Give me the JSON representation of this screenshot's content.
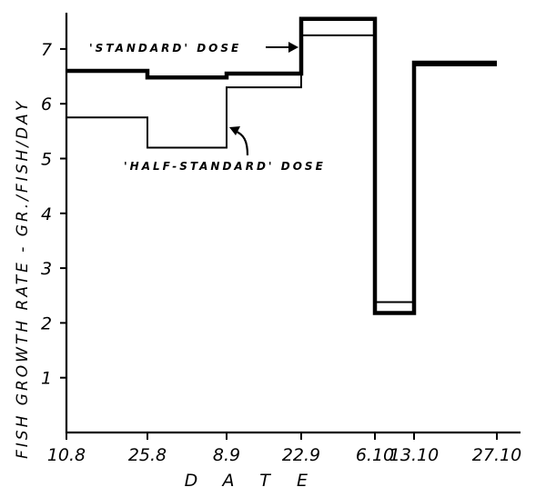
{
  "chart_data": {
    "type": "line",
    "subtype": "step",
    "title": "",
    "xlabel": "D A T E",
    "ylabel": "FISH GROWTH RATE - GR./FISH/DAY",
    "x_ticks": [
      "10.8",
      "25.8",
      "8.9",
      "22.9",
      "6.10",
      "13.10",
      "27.10"
    ],
    "y_ticks": [
      "1",
      "2",
      "3",
      "4",
      "5",
      "6",
      "7"
    ],
    "ylim": [
      0,
      7.7
    ],
    "grid": false,
    "legend": "annotations",
    "series": [
      {
        "name": "'STANDARD' DOSE",
        "style": "thick",
        "steps": [
          {
            "from": "10.8",
            "to": "25.8",
            "value": 6.6
          },
          {
            "from": "25.8",
            "to": "8.9",
            "value": 6.48
          },
          {
            "from": "8.9",
            "to": "22.9",
            "value": 6.55
          },
          {
            "from": "22.9",
            "to": "6.10",
            "value": 7.55
          },
          {
            "from": "6.10",
            "to": "13.10",
            "value": 2.18
          },
          {
            "from": "13.10",
            "to": "27.10",
            "value": 6.75
          }
        ]
      },
      {
        "name": "'HALF-STANDARD' DOSE",
        "style": "thin",
        "steps": [
          {
            "from": "10.8",
            "to": "25.8",
            "value": 5.75
          },
          {
            "from": "25.8",
            "to": "8.9",
            "value": 5.2
          },
          {
            "from": "8.9",
            "to": "22.9",
            "value": 6.3
          },
          {
            "from": "22.9",
            "to": "6.10",
            "value": 7.25
          },
          {
            "from": "6.10",
            "to": "13.10",
            "value": 2.38
          },
          {
            "from": "13.10",
            "to": "27.10",
            "value": 6.7
          }
        ]
      }
    ],
    "annotations": [
      {
        "text": "'STANDARD'   DOSE",
        "points_to": "standard series at 22.9"
      },
      {
        "text": "'HALF-STANDARD'   DOSE",
        "points_to": "half-standard series at 8.9"
      }
    ]
  }
}
